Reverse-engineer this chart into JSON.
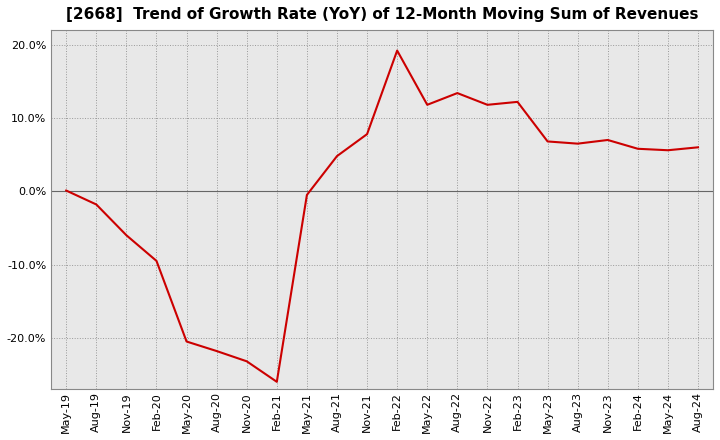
{
  "title": "[2668]  Trend of Growth Rate (YoY) of 12-Month Moving Sum of Revenues",
  "line_color": "#cc0000",
  "background_color": "#ffffff",
  "plot_bg_color": "#e8e8e8",
  "grid_color": "#999999",
  "ylim": [
    -0.27,
    0.22
  ],
  "yticks": [
    -0.2,
    -0.1,
    0.0,
    0.1,
    0.2
  ],
  "values": [
    0.001,
    -0.018,
    -0.06,
    -0.095,
    -0.205,
    -0.218,
    -0.232,
    -0.26,
    -0.005,
    0.048,
    0.078,
    0.192,
    0.118,
    0.134,
    0.118,
    0.122,
    0.068,
    0.065,
    0.07,
    0.058,
    0.056,
    0.06
  ],
  "x_tick_labels": [
    "May-19",
    "Aug-19",
    "Nov-19",
    "Feb-20",
    "May-20",
    "Aug-20",
    "Nov-20",
    "Feb-21",
    "May-21",
    "Aug-21",
    "Nov-21",
    "Feb-22",
    "May-22",
    "Aug-22",
    "Nov-22",
    "Feb-23",
    "May-23",
    "Aug-23",
    "Nov-23",
    "Feb-24",
    "May-24",
    "Aug-24"
  ],
  "title_fontsize": 11,
  "tick_fontsize": 8,
  "linewidth": 1.5
}
